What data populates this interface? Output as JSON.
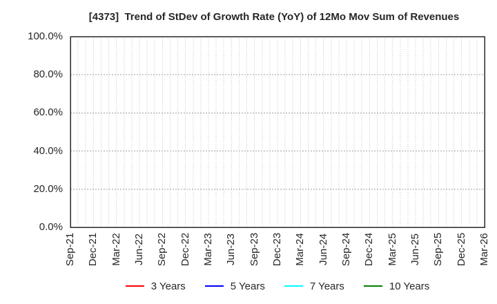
{
  "chart_data": {
    "type": "line",
    "title": "[4373]  Trend of StDev of Growth Rate (YoY) of 12Mo Mov Sum of Revenues",
    "x_tick_labels": [
      "Sep-21",
      "Dec-21",
      "Mar-22",
      "Jun-22",
      "Sep-22",
      "Dec-22",
      "Mar-23",
      "Jun-23",
      "Sep-23",
      "Dec-23",
      "Mar-24",
      "Jun-24",
      "Sep-24",
      "Dec-24",
      "Mar-25",
      "Jun-25",
      "Sep-25",
      "Dec-25",
      "Mar-26"
    ],
    "x_minor_divisions_per_interval": 3,
    "y_tick_values": [
      0,
      20,
      40,
      60,
      80,
      100
    ],
    "y_tick_labels": [
      "0.0%",
      "20.0%",
      "40.0%",
      "60.0%",
      "80.0%",
      "100.0%"
    ],
    "ylim": [
      0,
      100
    ],
    "grid": true,
    "legend_position": "bottom",
    "series": [
      {
        "name": "3 Years",
        "color": "#ff0000",
        "values": []
      },
      {
        "name": "5 Years",
        "color": "#0000ff",
        "values": []
      },
      {
        "name": "7 Years",
        "color": "#00ffff",
        "values": []
      },
      {
        "name": "10 Years",
        "color": "#008000",
        "values": []
      }
    ]
  },
  "colors": {
    "background": "#ffffff",
    "axis_border": "#262626",
    "grid_vertical": "#c3c3c3",
    "grid_horizontal": "#9e9e9e",
    "text": "#262626"
  }
}
